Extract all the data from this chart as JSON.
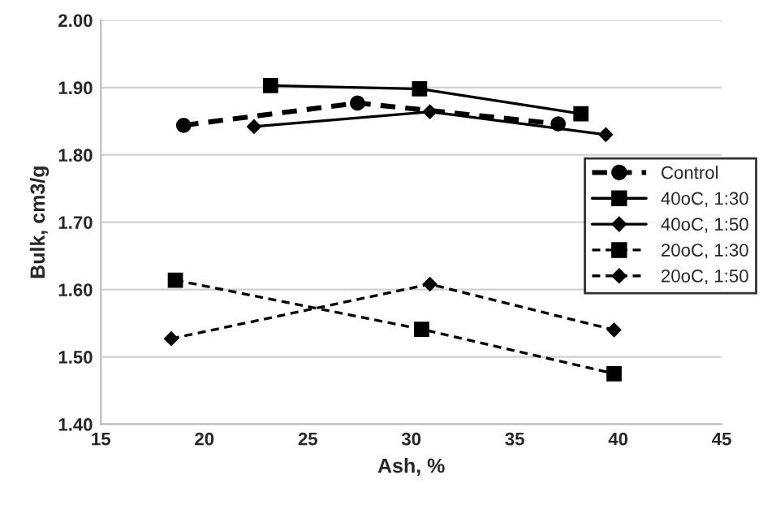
{
  "chart_data": {
    "type": "line",
    "xlabel": "Ash, %",
    "ylabel": "Bulk, cm3/g",
    "xlim": [
      15,
      45
    ],
    "xticks": [
      15,
      20,
      25,
      30,
      35,
      40,
      45
    ],
    "ylim": [
      1.4,
      2.0
    ],
    "yticks": [
      {
        "value": 1.4,
        "label": "1.40"
      },
      {
        "value": 1.5,
        "label": "1.50"
      },
      {
        "value": 1.6,
        "label": "1.60"
      },
      {
        "value": 1.7,
        "label": "1.70"
      },
      {
        "value": 1.8,
        "label": "1.80"
      },
      {
        "value": 1.9,
        "label": "1.90"
      },
      {
        "value": 2.0,
        "label": "2.00"
      }
    ],
    "grid": "y",
    "legend": "right",
    "series": [
      {
        "name": "Control",
        "color": "#000000",
        "marker": "circle",
        "line_style": "dashed",
        "x": [
          19.0,
          27.4,
          37.1
        ],
        "values": [
          1.844,
          1.877,
          1.846
        ]
      },
      {
        "name": "40oC, 1:30",
        "color": "#000000",
        "marker": "square",
        "line_style": "solid",
        "x": [
          23.2,
          30.4,
          38.2
        ],
        "values": [
          1.903,
          1.898,
          1.861
        ]
      },
      {
        "name": "40oC, 1:50",
        "color": "#000000",
        "marker": "diamond",
        "line_style": "solid",
        "x": [
          22.4,
          30.9,
          39.4
        ],
        "values": [
          1.842,
          1.864,
          1.83
        ]
      },
      {
        "name": "20oC, 1:30",
        "color": "#000000",
        "marker": "square",
        "line_style": "dashed",
        "x": [
          18.6,
          30.5,
          39.8
        ],
        "values": [
          1.614,
          1.541,
          1.475
        ]
      },
      {
        "name": "20oC, 1:50",
        "color": "#000000",
        "marker": "diamond",
        "line_style": "dashed",
        "x": [
          18.4,
          30.9,
          39.8
        ],
        "values": [
          1.527,
          1.608,
          1.54
        ]
      }
    ]
  }
}
